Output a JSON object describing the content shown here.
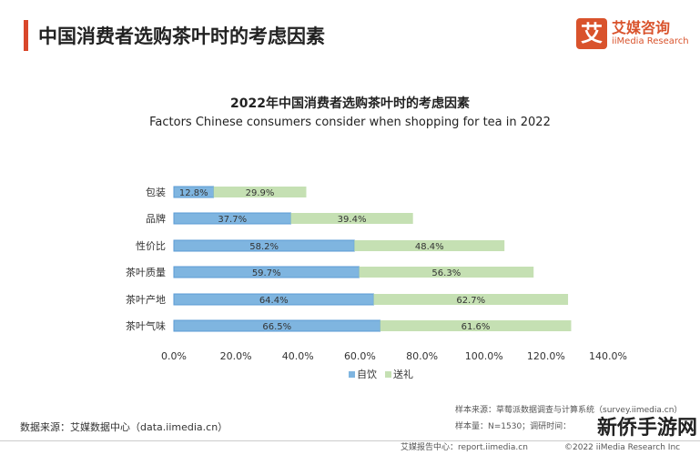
{
  "header": {
    "title": "中国消费者选购茶叶时的考虑因素"
  },
  "logo": {
    "icon_char": "艾",
    "cn": "艾媒咨询",
    "en": "iiMedia Research"
  },
  "chart_data": {
    "type": "bar",
    "stacked": true,
    "orientation": "horizontal",
    "title": "2022年中国消费者选购茶叶时的考虑因素",
    "subtitle": "Factors Chinese consumers consider when shopping for tea in 2022",
    "categories": [
      "包装",
      "品牌",
      "性价比",
      "茶叶质量",
      "茶叶产地",
      "茶叶气味"
    ],
    "series": [
      {
        "name": "自饮",
        "values": [
          12.8,
          37.7,
          58.2,
          59.7,
          64.4,
          66.5
        ],
        "color": "#7fb5e0"
      },
      {
        "name": "送礼",
        "values": [
          29.9,
          39.4,
          48.4,
          56.3,
          62.7,
          61.6
        ],
        "color": "#c5e0b3"
      }
    ],
    "xlim": [
      0,
      140
    ],
    "xticks": [
      "0.0%",
      "20.0%",
      "40.0%",
      "60.0%",
      "80.0%",
      "100.0%",
      "120.0%",
      "140.0%"
    ],
    "grid": false,
    "legend": "bottom"
  },
  "footer": {
    "source": "数据来源：艾媒数据中心（data.iimedia.cn）",
    "sample_source": "样本来源：草莓派数据调查与计算系统（survey.iimedia.cn）",
    "sample_size": "样本量：N=1530；调研时间：",
    "report": "艾媒报告中心：report.iimedia.cn",
    "copyright": "©2022 iiMedia Research Inc",
    "watermark": "新侨手游网"
  }
}
